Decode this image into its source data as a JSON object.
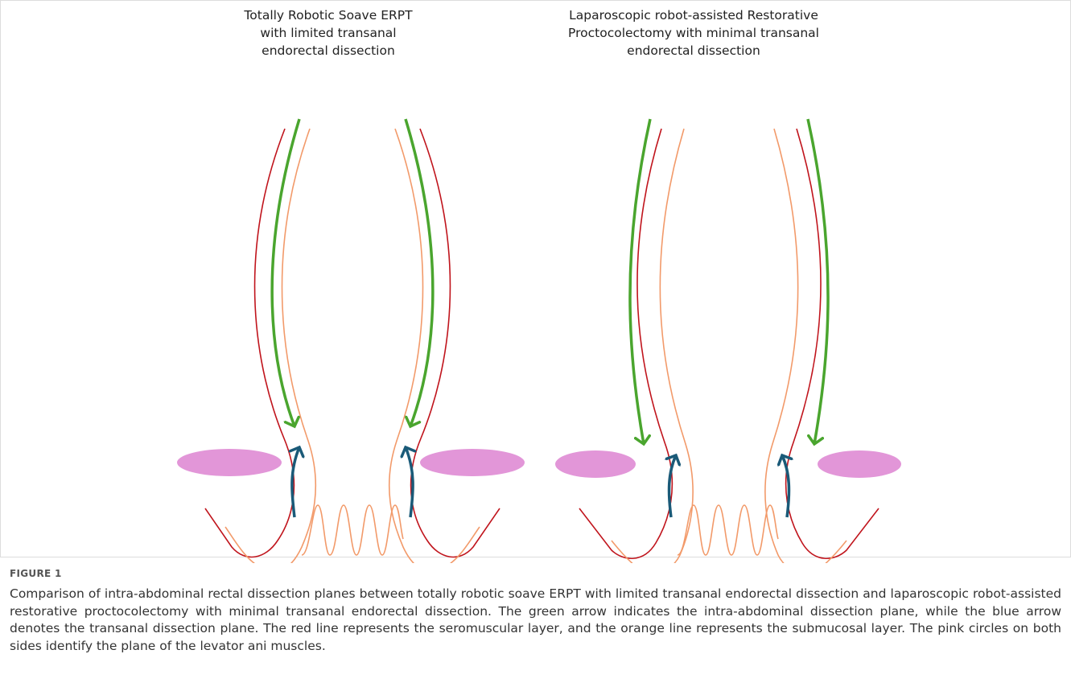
{
  "figure": {
    "panels": [
      {
        "title_lines": [
          "Totally Robotic Soave ERPT",
          "with limited transanal",
          "endorectal dissection"
        ]
      },
      {
        "title_lines": [
          "Laparoscopic robot-assisted Restorative",
          "Proctocolectomy with minimal transanal",
          "endorectal dissection"
        ]
      }
    ],
    "label": "FIGURE 1",
    "caption": "Comparison of intra-abdominal rectal dissection planes between totally robotic soave ERPT with limited transanal endorectal dissection and laparoscopic robot-assisted restorative proctocolectomy with minimal transanal endorectal dissection. The green arrow indicates the intra-abdominal dissection plane, while the blue arrow denotes the transanal dissection plane. The red line represents the seromuscular layer, and the orange line represents the submucosal layer. The pink circles on both sides identify the plane of the levator ani muscles."
  }
}
